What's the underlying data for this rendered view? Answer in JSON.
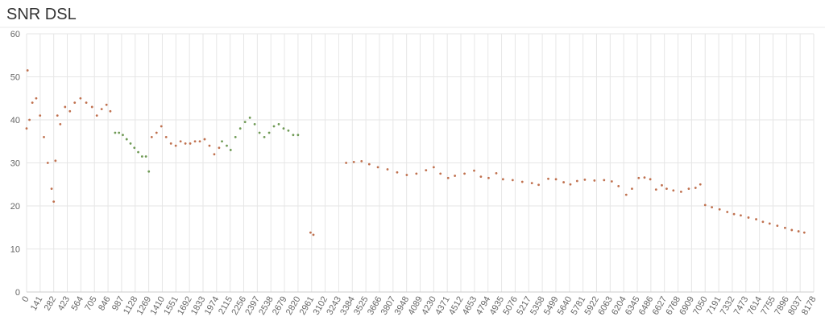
{
  "chart_data": {
    "type": "scatter",
    "title": "SNR DSL",
    "xlim": [
      0,
      8178
    ],
    "ylim": [
      0,
      60
    ],
    "yticks": [
      0,
      10,
      20,
      30,
      40,
      50,
      60
    ],
    "xticks": [
      0,
      141,
      282,
      423,
      564,
      705,
      846,
      987,
      1128,
      1269,
      1410,
      1551,
      1692,
      1833,
      1974,
      2115,
      2256,
      2397,
      2538,
      2679,
      2820,
      2961,
      3102,
      3243,
      3384,
      3525,
      3666,
      3807,
      3948,
      4089,
      4230,
      4371,
      4512,
      4653,
      4794,
      4935,
      5076,
      5217,
      5358,
      5499,
      5640,
      5781,
      5922,
      6063,
      6204,
      6345,
      6486,
      6627,
      6768,
      6909,
      7050,
      7191,
      7332,
      7473,
      7614,
      7755,
      7896,
      8037,
      8178
    ],
    "grid": true,
    "series": [
      {
        "color": "#c0714f",
        "x": [
          0,
          10,
          30,
          60,
          100,
          140,
          180,
          220,
          260,
          282,
          300,
          320,
          350,
          400,
          450,
          500,
          560,
          620,
          680,
          730,
          780,
          830,
          870,
          1300,
          1350,
          1400,
          1450,
          1500,
          1550,
          1600,
          1650,
          1700,
          1750,
          1800,
          1850,
          1900,
          1950,
          2000,
          2950,
          2980,
          3320,
          3400,
          3480,
          3560,
          3650,
          3750,
          3850,
          3950,
          4050,
          4150,
          4230,
          4300,
          4380,
          4450,
          4550,
          4650,
          4720,
          4800,
          4880,
          4950,
          5050,
          5150,
          5250,
          5320,
          5420,
          5500,
          5580,
          5650,
          5720,
          5800,
          5900,
          6000,
          6080,
          6150,
          6230,
          6290,
          6360,
          6420,
          6480,
          6540,
          6600,
          6650,
          6720,
          6800,
          6880,
          6950,
          7000,
          7050,
          7120,
          7200,
          7280,
          7350,
          7420,
          7500,
          7580,
          7650,
          7720,
          7800,
          7880,
          7950,
          8020,
          8080
        ],
        "values": [
          38,
          51.5,
          40,
          44,
          45,
          41,
          36,
          30,
          24,
          21,
          30.5,
          41,
          39,
          43,
          42,
          44,
          45,
          44,
          43,
          41,
          42.5,
          43.5,
          42,
          36,
          37,
          38.5,
          36,
          34.5,
          34,
          35,
          34.5,
          34.5,
          35,
          35,
          35.5,
          34,
          32,
          33.5,
          13.8,
          13.3,
          30,
          30.2,
          30.4,
          29.7,
          29,
          28.5,
          27.8,
          27.2,
          27.5,
          28.3,
          29,
          27.5,
          26.5,
          27,
          27.5,
          28.2,
          26.8,
          26.5,
          27.6,
          26.2,
          26,
          25.6,
          25.3,
          24.9,
          26.3,
          26.2,
          25.5,
          25,
          25.8,
          26.1,
          25.9,
          26,
          25.7,
          24.6,
          22.6,
          24,
          26.5,
          26.6,
          26.2,
          23.8,
          24.8,
          24,
          23.6,
          23.3,
          24,
          24.2,
          25,
          20.2,
          19.7,
          19.2,
          18.6,
          18.1,
          17.8,
          17.3,
          16.9,
          16.3,
          15.9,
          15.4,
          14.9,
          14.4,
          14.1,
          13.8
        ]
      },
      {
        "color": "#6f9a55",
        "x": [
          920,
          960,
          1000,
          1040,
          1080,
          1120,
          1160,
          1200,
          1240,
          1270,
          2030,
          2080,
          2120,
          2170,
          2220,
          2270,
          2320,
          2370,
          2420,
          2470,
          2520,
          2570,
          2620,
          2670,
          2720,
          2770,
          2820
        ],
        "values": [
          37,
          37,
          36.5,
          35.5,
          34.5,
          33.5,
          32.5,
          31.5,
          31.5,
          28,
          35,
          34,
          33,
          36,
          38,
          39.5,
          40.5,
          39,
          37,
          36,
          37,
          38.5,
          39,
          38,
          37.5,
          36.5,
          36.5
        ]
      }
    ]
  }
}
